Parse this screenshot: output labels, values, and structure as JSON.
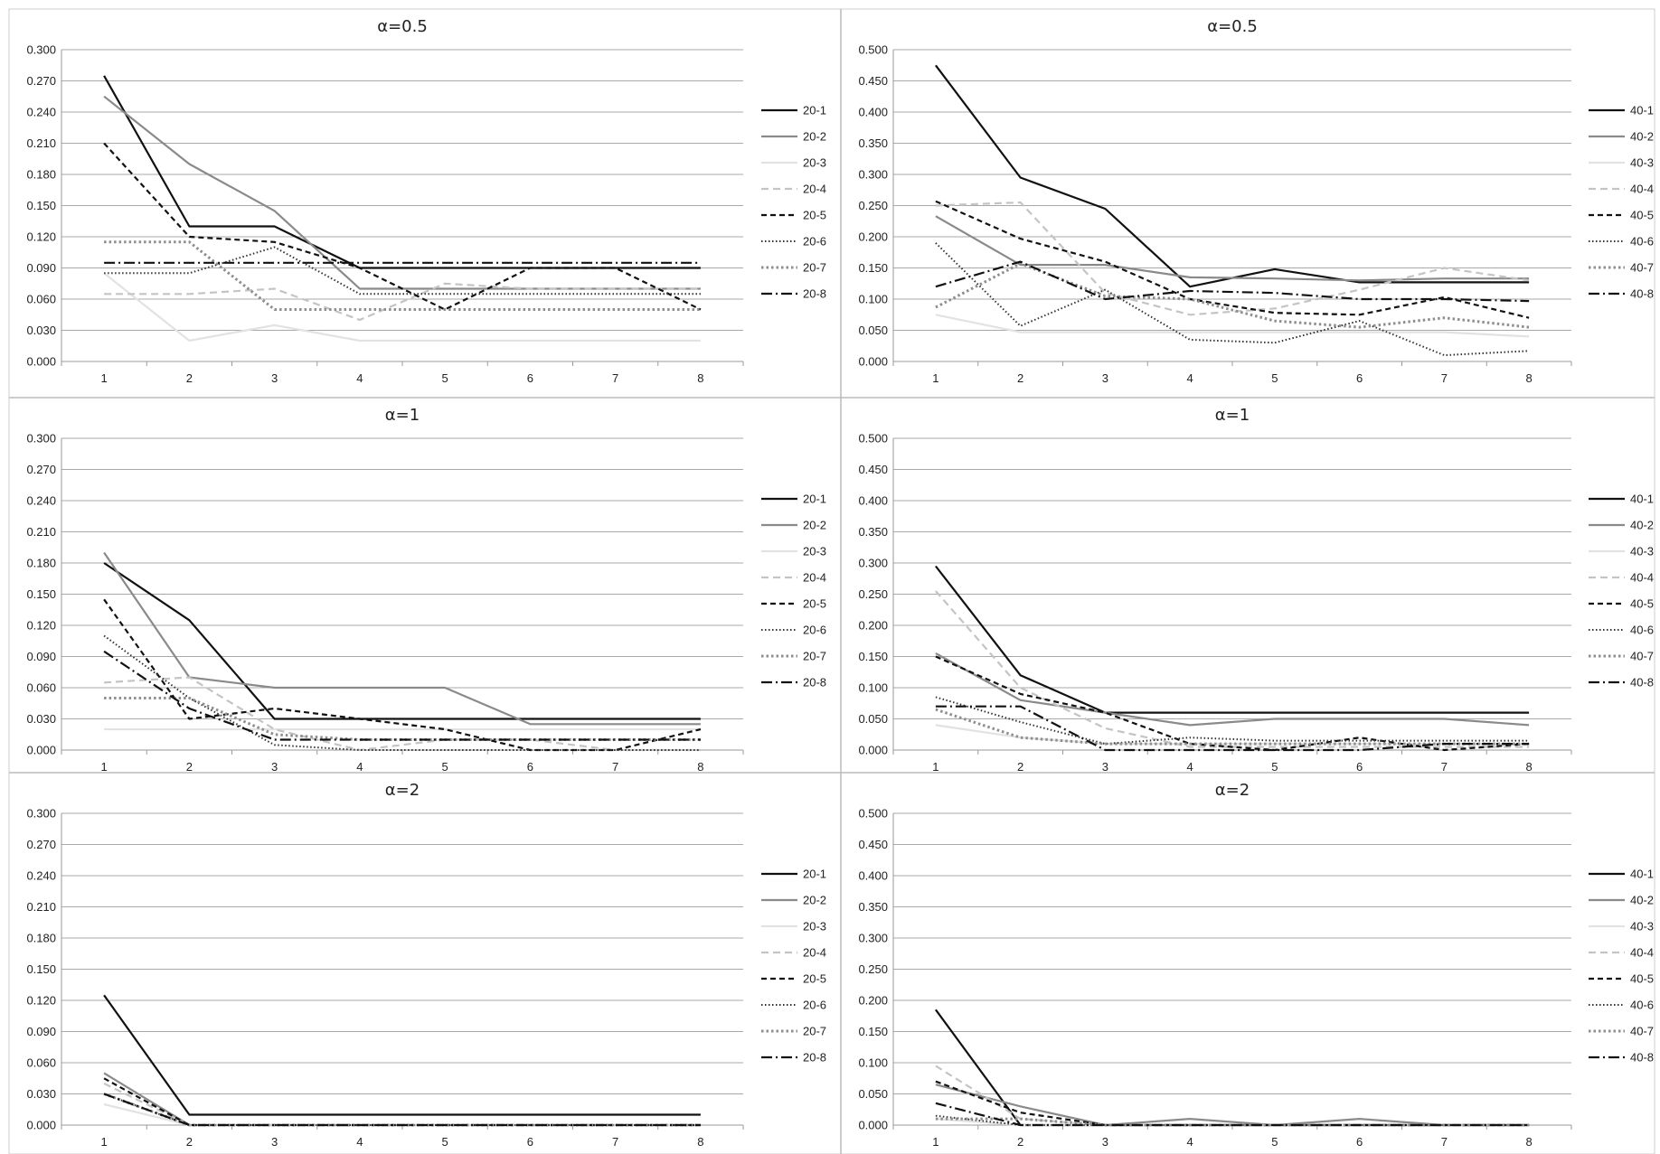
{
  "chart_data": [
    {
      "type": "line",
      "title": "α=0.5",
      "categories": [
        "1",
        "2",
        "3",
        "4",
        "5",
        "6",
        "7",
        "8"
      ],
      "ylim": [
        0,
        0.3
      ],
      "yticks": [
        "0.000",
        "0.030",
        "0.060",
        "0.090",
        "0.120",
        "0.150",
        "0.180",
        "0.210",
        "0.240",
        "0.270",
        "0.300"
      ],
      "grid": true,
      "legend": "right",
      "series": [
        {
          "name": "20-1",
          "values": [
            0.275,
            0.13,
            0.13,
            0.09,
            0.09,
            0.09,
            0.09,
            0.09
          ]
        },
        {
          "name": "20-2",
          "values": [
            0.255,
            0.19,
            0.145,
            0.07,
            0.07,
            0.07,
            0.07,
            0.07
          ]
        },
        {
          "name": "20-3",
          "values": [
            0.085,
            0.02,
            0.035,
            0.02,
            0.02,
            0.02,
            0.02,
            0.02
          ]
        },
        {
          "name": "20-4",
          "values": [
            0.065,
            0.065,
            0.07,
            0.04,
            0.075,
            0.07,
            0.07,
            0.07
          ]
        },
        {
          "name": "20-5",
          "values": [
            0.21,
            0.12,
            0.115,
            0.09,
            0.05,
            0.09,
            0.09,
            0.05
          ]
        },
        {
          "name": "20-6",
          "values": [
            0.085,
            0.085,
            0.11,
            0.065,
            0.065,
            0.065,
            0.065,
            0.065
          ]
        },
        {
          "name": "20-7",
          "values": [
            0.115,
            0.115,
            0.05,
            0.05,
            0.05,
            0.05,
            0.05,
            0.05
          ]
        },
        {
          "name": "20-8",
          "values": [
            0.095,
            0.095,
            0.095,
            0.095,
            0.095,
            0.095,
            0.095,
            0.095
          ]
        }
      ]
    },
    {
      "type": "line",
      "title": "α=0.5",
      "categories": [
        "1",
        "2",
        "3",
        "4",
        "5",
        "6",
        "7",
        "8"
      ],
      "ylim": [
        0,
        0.5
      ],
      "yticks": [
        "0.000",
        "0.050",
        "0.100",
        "0.150",
        "0.200",
        "0.250",
        "0.300",
        "0.350",
        "0.400",
        "0.450",
        "0.500"
      ],
      "grid": true,
      "legend": "right",
      "series": [
        {
          "name": "40-1",
          "values": [
            0.475,
            0.295,
            0.245,
            0.12,
            0.148,
            0.127,
            0.127,
            0.127
          ]
        },
        {
          "name": "40-2",
          "values": [
            0.233,
            0.155,
            0.155,
            0.135,
            0.133,
            0.13,
            0.133,
            0.133
          ]
        },
        {
          "name": "40-3",
          "values": [
            0.075,
            0.047,
            0.047,
            0.047,
            0.047,
            0.047,
            0.047,
            0.04
          ]
        },
        {
          "name": "40-4",
          "values": [
            0.25,
            0.255,
            0.11,
            0.075,
            0.085,
            0.115,
            0.15,
            0.13
          ]
        },
        {
          "name": "40-5",
          "values": [
            0.257,
            0.197,
            0.16,
            0.1,
            0.078,
            0.075,
            0.103,
            0.07
          ]
        },
        {
          "name": "40-6",
          "values": [
            0.19,
            0.057,
            0.115,
            0.035,
            0.03,
            0.065,
            0.01,
            0.017
          ]
        },
        {
          "name": "40-7",
          "values": [
            0.087,
            0.157,
            0.105,
            0.1,
            0.065,
            0.055,
            0.07,
            0.055
          ]
        },
        {
          "name": "40-8",
          "values": [
            0.12,
            0.16,
            0.1,
            0.113,
            0.11,
            0.1,
            0.1,
            0.097
          ]
        }
      ]
    },
    {
      "type": "line",
      "title": "α=1",
      "categories": [
        "1",
        "2",
        "3",
        "4",
        "5",
        "6",
        "7",
        "8"
      ],
      "ylim": [
        0,
        0.3
      ],
      "yticks": [
        "0.000",
        "0.030",
        "0.060",
        "0.090",
        "0.120",
        "0.150",
        "0.180",
        "0.210",
        "0.240",
        "0.270",
        "0.300"
      ],
      "grid": true,
      "legend": "right",
      "series": [
        {
          "name": "20-1",
          "values": [
            0.18,
            0.125,
            0.03,
            0.03,
            0.03,
            0.03,
            0.03,
            0.03
          ]
        },
        {
          "name": "20-2",
          "values": [
            0.19,
            0.07,
            0.06,
            0.06,
            0.06,
            0.025,
            0.025,
            0.025
          ]
        },
        {
          "name": "20-3",
          "values": [
            0.02,
            0.02,
            0.02,
            0.02,
            0.02,
            0.02,
            0.02,
            0.02
          ]
        },
        {
          "name": "20-4",
          "values": [
            0.065,
            0.07,
            0.02,
            0.0,
            0.01,
            0.01,
            0.0,
            0.0
          ]
        },
        {
          "name": "20-5",
          "values": [
            0.145,
            0.03,
            0.04,
            0.03,
            0.02,
            0.0,
            0.0,
            0.02
          ]
        },
        {
          "name": "20-6",
          "values": [
            0.11,
            0.05,
            0.005,
            0.0,
            0.0,
            0.0,
            0.0,
            0.0
          ]
        },
        {
          "name": "20-7",
          "values": [
            0.05,
            0.05,
            0.015,
            0.01,
            0.01,
            0.01,
            0.01,
            0.01
          ]
        },
        {
          "name": "20-8",
          "values": [
            0.095,
            0.04,
            0.01,
            0.01,
            0.01,
            0.01,
            0.01,
            0.01
          ]
        }
      ]
    },
    {
      "type": "line",
      "title": "α=1",
      "categories": [
        "1",
        "2",
        "3",
        "4",
        "5",
        "6",
        "7",
        "8"
      ],
      "ylim": [
        0,
        0.5
      ],
      "yticks": [
        "0.000",
        "0.050",
        "0.100",
        "0.150",
        "0.200",
        "0.250",
        "0.300",
        "0.350",
        "0.400",
        "0.450",
        "0.500"
      ],
      "grid": true,
      "legend": "right",
      "series": [
        {
          "name": "40-1",
          "values": [
            0.295,
            0.12,
            0.06,
            0.06,
            0.06,
            0.06,
            0.06,
            0.06
          ]
        },
        {
          "name": "40-2",
          "values": [
            0.155,
            0.08,
            0.06,
            0.04,
            0.05,
            0.05,
            0.05,
            0.04
          ]
        },
        {
          "name": "40-3",
          "values": [
            0.04,
            0.02,
            0.01,
            0.01,
            0.01,
            0.01,
            0.01,
            0.01
          ]
        },
        {
          "name": "40-4",
          "values": [
            0.255,
            0.1,
            0.035,
            0.005,
            0.005,
            0.005,
            0.005,
            0.005
          ]
        },
        {
          "name": "40-5",
          "values": [
            0.15,
            0.09,
            0.06,
            0.01,
            0.0,
            0.02,
            0.0,
            0.01
          ]
        },
        {
          "name": "40-6",
          "values": [
            0.085,
            0.045,
            0.01,
            0.02,
            0.015,
            0.015,
            0.015,
            0.015
          ]
        },
        {
          "name": "40-7",
          "values": [
            0.065,
            0.02,
            0.01,
            0.01,
            0.01,
            0.01,
            0.01,
            0.01
          ]
        },
        {
          "name": "40-8",
          "values": [
            0.07,
            0.07,
            0.0,
            0.0,
            0.0,
            0.0,
            0.01,
            0.01
          ]
        }
      ]
    },
    {
      "type": "line",
      "title": "α=2",
      "categories": [
        "1",
        "2",
        "3",
        "4",
        "5",
        "6",
        "7",
        "8"
      ],
      "ylim": [
        0,
        0.3
      ],
      "yticks": [
        "0.000",
        "0.030",
        "0.060",
        "0.090",
        "0.120",
        "0.150",
        "0.180",
        "0.210",
        "0.240",
        "0.270",
        "0.300"
      ],
      "grid": true,
      "legend": "right",
      "series": [
        {
          "name": "20-1",
          "values": [
            0.125,
            0.01,
            0.01,
            0.01,
            0.01,
            0.01,
            0.01,
            0.01
          ]
        },
        {
          "name": "20-2",
          "values": [
            0.05,
            0.0,
            0.0,
            0.0,
            0.0,
            0.0,
            0.0,
            0.0
          ]
        },
        {
          "name": "20-3",
          "values": [
            0.02,
            0.0,
            0.0,
            0.0,
            0.0,
            0.0,
            0.0,
            0.0
          ]
        },
        {
          "name": "20-4",
          "values": [
            0.04,
            0.0,
            0.0,
            0.0,
            0.0,
            0.0,
            0.0,
            0.0
          ]
        },
        {
          "name": "20-5",
          "values": [
            0.045,
            0.0,
            0.0,
            0.0,
            0.0,
            0.0,
            0.0,
            0.0
          ]
        },
        {
          "name": "20-6",
          "values": [
            0.03,
            0.0,
            0.0,
            0.0,
            0.0,
            0.0,
            0.0,
            0.0
          ]
        },
        {
          "name": "20-7",
          "values": [
            0.03,
            0.0,
            0.0,
            0.0,
            0.0,
            0.0,
            0.0,
            0.0
          ]
        },
        {
          "name": "20-8",
          "values": [
            0.03,
            0.0,
            0.0,
            0.0,
            0.0,
            0.0,
            0.0,
            0.0
          ]
        }
      ]
    },
    {
      "type": "line",
      "title": "α=2",
      "categories": [
        "1",
        "2",
        "3",
        "4",
        "5",
        "6",
        "7",
        "8"
      ],
      "ylim": [
        0,
        0.5
      ],
      "yticks": [
        "0.000",
        "0.050",
        "0.100",
        "0.150",
        "0.200",
        "0.250",
        "0.300",
        "0.350",
        "0.400",
        "0.450",
        "0.500"
      ],
      "grid": true,
      "legend": "right",
      "series": [
        {
          "name": "40-1",
          "values": [
            0.185,
            0.0,
            0.0,
            0.0,
            0.0,
            0.0,
            0.0,
            0.0
          ]
        },
        {
          "name": "40-2",
          "values": [
            0.065,
            0.03,
            0.0,
            0.01,
            0.0,
            0.01,
            0.0,
            0.0
          ]
        },
        {
          "name": "40-3",
          "values": [
            0.01,
            0.0,
            0.0,
            0.0,
            0.0,
            0.0,
            0.0,
            0.0
          ]
        },
        {
          "name": "40-4",
          "values": [
            0.095,
            0.01,
            0.0,
            0.0,
            0.0,
            0.0,
            0.0,
            0.0
          ]
        },
        {
          "name": "40-5",
          "values": [
            0.07,
            0.02,
            0.0,
            0.0,
            0.0,
            0.0,
            0.0,
            0.0
          ]
        },
        {
          "name": "40-6",
          "values": [
            0.015,
            0.0,
            0.0,
            0.0,
            0.0,
            0.0,
            0.0,
            0.0
          ]
        },
        {
          "name": "40-7",
          "values": [
            0.01,
            0.01,
            0.0,
            0.0,
            0.0,
            0.0,
            0.0,
            0.0
          ]
        },
        {
          "name": "40-8",
          "values": [
            0.035,
            0.0,
            0.0,
            0.0,
            0.0,
            0.0,
            0.0,
            0.0
          ]
        }
      ]
    }
  ],
  "series_styles": [
    {
      "color": "#111111",
      "dash": "",
      "width": 2.2
    },
    {
      "color": "#8a8a8a",
      "dash": "",
      "width": 2.2
    },
    {
      "color": "#e2e2e2",
      "dash": "",
      "width": 2.2
    },
    {
      "color": "#c4c4c4",
      "dash": "8,5",
      "width": 2.2
    },
    {
      "color": "#111111",
      "dash": "6,4",
      "width": 2.2
    },
    {
      "color": "#333333",
      "dash": "1.5,2.5",
      "width": 2
    },
    {
      "color": "#8e8e8e",
      "dash": "2.5,3",
      "width": 3
    },
    {
      "color": "#111111",
      "dash": "12,4,2,4",
      "width": 2.2
    }
  ]
}
